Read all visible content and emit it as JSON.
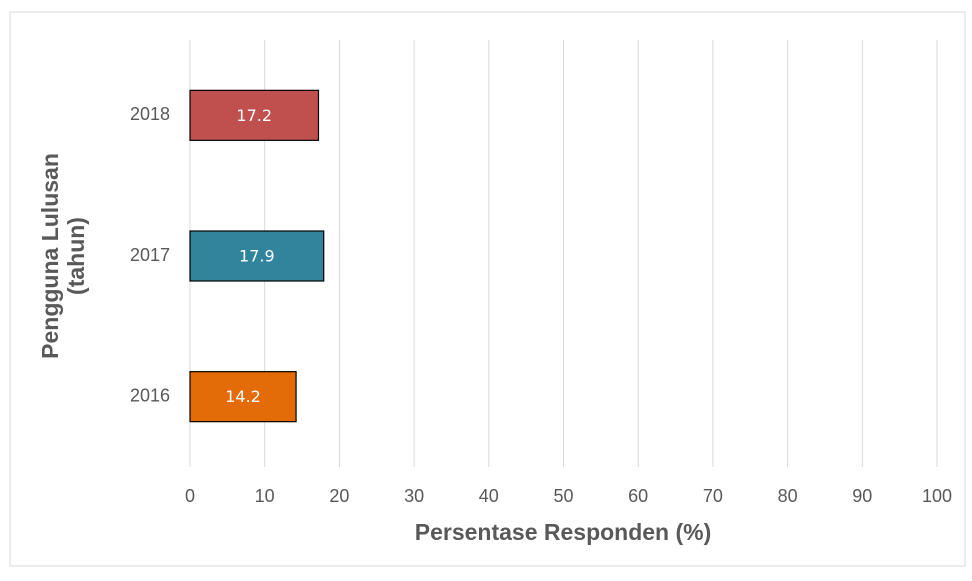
{
  "chart_data": {
    "type": "barh",
    "xlabel": "Persentase Responden (%)",
    "ylabel": [
      "Pengguna Lulusan",
      "(tahun)"
    ],
    "categories": [
      "2016",
      "2017",
      "2018"
    ],
    "values": [
      14.2,
      17.9,
      17.2
    ],
    "colors": [
      "#e36c09",
      "#31849b",
      "#c0504d"
    ],
    "xlim": [
      0,
      100
    ],
    "xticks": [
      0,
      10,
      20,
      30,
      40,
      50,
      60,
      70,
      80,
      90,
      100
    ],
    "grid": true
  }
}
